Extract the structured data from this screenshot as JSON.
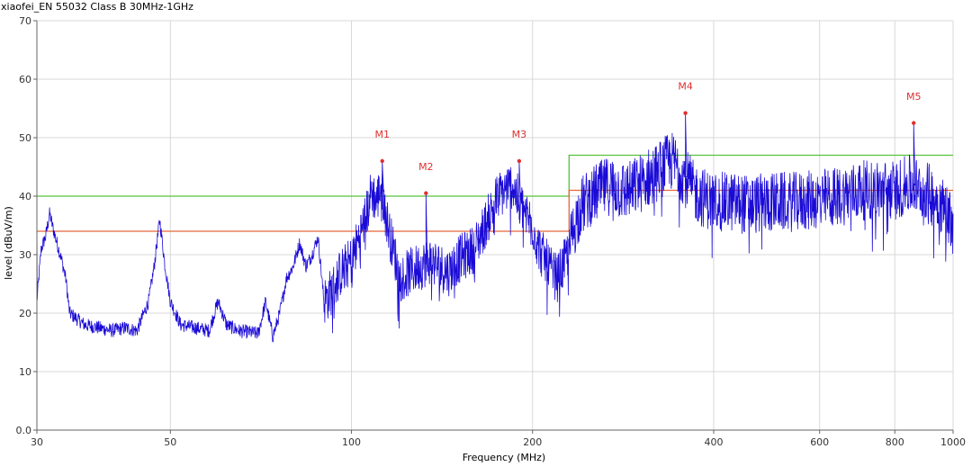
{
  "chart_data": {
    "type": "line",
    "title": "xiaofei_EN 55032 Class B 30MHz-1GHz",
    "xlabel": "Frequency (MHz)",
    "ylabel": "level (dBuV/m)",
    "x_scale": "log",
    "xlim": [
      30,
      1000
    ],
    "ylim": [
      0,
      70
    ],
    "grid": true,
    "x_ticks": [
      30,
      50,
      100,
      200,
      400,
      600,
      800,
      1000
    ],
    "y_ticks": [
      0.0,
      10,
      20,
      30,
      40,
      50,
      60,
      70
    ],
    "y_tick_labels": [
      "0.0",
      "10",
      "20",
      "30",
      "40",
      "50",
      "60",
      "70"
    ],
    "colors": {
      "trace": "#1a0ad6",
      "limit_qp": "#56c23c",
      "limit_av": "#e8663a",
      "markers": "#e03030",
      "grid": "#d8d8d8",
      "axis": "#666666"
    },
    "series": [
      {
        "role": "limit_qp",
        "points": [
          [
            30,
            40
          ],
          [
            230,
            40
          ],
          [
            230,
            47
          ],
          [
            1000,
            47
          ]
        ]
      },
      {
        "role": "limit_av",
        "points": [
          [
            30,
            34
          ],
          [
            230,
            34
          ],
          [
            230,
            41
          ],
          [
            1000,
            41
          ]
        ]
      },
      {
        "role": "trace",
        "envelope": [
          [
            30,
            22
          ],
          [
            30.5,
            31
          ],
          [
            31,
            33
          ],
          [
            31.5,
            37
          ],
          [
            32,
            34
          ],
          [
            33,
            29
          ],
          [
            33.5,
            26
          ],
          [
            34,
            20
          ],
          [
            36,
            18
          ],
          [
            38,
            17.5
          ],
          [
            40,
            17
          ],
          [
            42,
            17.5
          ],
          [
            44,
            17
          ],
          [
            46,
            22
          ],
          [
            47,
            28
          ],
          [
            48,
            36
          ],
          [
            49,
            28
          ],
          [
            50,
            22
          ],
          [
            52,
            18
          ],
          [
            55,
            17.5
          ],
          [
            58,
            17
          ],
          [
            60,
            22
          ],
          [
            62,
            18
          ],
          [
            65,
            17
          ],
          [
            70,
            16.5
          ],
          [
            72,
            22
          ],
          [
            74,
            16
          ],
          [
            76,
            20
          ],
          [
            78,
            26
          ],
          [
            80,
            28
          ],
          [
            82,
            32
          ],
          [
            84,
            28
          ],
          [
            86,
            30
          ],
          [
            88,
            33
          ],
          [
            90,
            22
          ],
          [
            93,
            24
          ],
          [
            96,
            27
          ],
          [
            100,
            29
          ],
          [
            103,
            33
          ],
          [
            106,
            37
          ],
          [
            108,
            41
          ],
          [
            110,
            39
          ],
          [
            112,
            42
          ],
          [
            114,
            37
          ],
          [
            116,
            33
          ],
          [
            118,
            30
          ],
          [
            120,
            26
          ],
          [
            125,
            27
          ],
          [
            130,
            28
          ],
          [
            135,
            29
          ],
          [
            140,
            28
          ],
          [
            145,
            27
          ],
          [
            150,
            29
          ],
          [
            155,
            30
          ],
          [
            160,
            31
          ],
          [
            165,
            34
          ],
          [
            170,
            37
          ],
          [
            175,
            40
          ],
          [
            180,
            41
          ],
          [
            185,
            42
          ],
          [
            190,
            39
          ],
          [
            195,
            37
          ],
          [
            200,
            35
          ],
          [
            205,
            31
          ],
          [
            210,
            29
          ],
          [
            215,
            27
          ],
          [
            220,
            26
          ],
          [
            225,
            28
          ],
          [
            230,
            31
          ],
          [
            235,
            35
          ],
          [
            240,
            38
          ],
          [
            250,
            40
          ],
          [
            260,
            41
          ],
          [
            270,
            42
          ],
          [
            280,
            41
          ],
          [
            290,
            41
          ],
          [
            300,
            42
          ],
          [
            310,
            43
          ],
          [
            320,
            44
          ],
          [
            330,
            45
          ],
          [
            340,
            46
          ],
          [
            350,
            45
          ],
          [
            360,
            43
          ],
          [
            370,
            41
          ],
          [
            380,
            40
          ],
          [
            400,
            39
          ],
          [
            430,
            39
          ],
          [
            460,
            38.5
          ],
          [
            500,
            39
          ],
          [
            550,
            39
          ],
          [
            600,
            39.5
          ],
          [
            650,
            40
          ],
          [
            700,
            41
          ],
          [
            750,
            41
          ],
          [
            800,
            41
          ],
          [
            850,
            42
          ],
          [
            900,
            41
          ],
          [
            950,
            39
          ],
          [
            980,
            37
          ],
          [
            1000,
            36
          ]
        ]
      }
    ],
    "markers": [
      {
        "label": "M1",
        "x": 112.5,
        "y": 46
      },
      {
        "label": "M2",
        "x": 133,
        "y": 40.5
      },
      {
        "label": "M3",
        "x": 190,
        "y": 46
      },
      {
        "label": "M4",
        "x": 359,
        "y": 54.2
      },
      {
        "label": "M5",
        "x": 860,
        "y": 52.5
      }
    ]
  }
}
